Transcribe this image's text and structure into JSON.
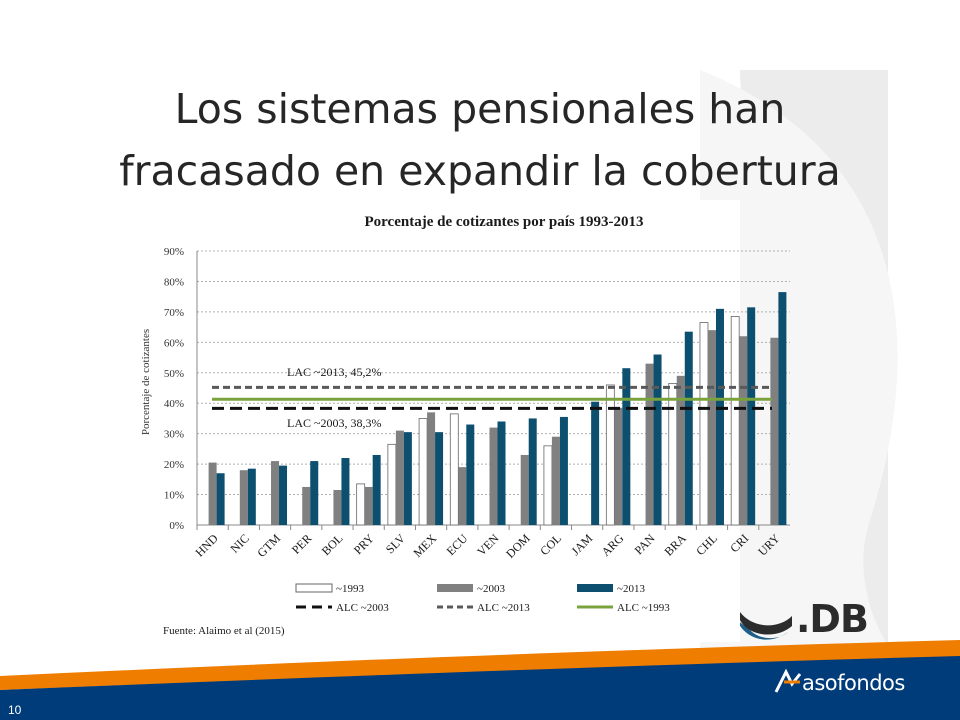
{
  "slide": {
    "title_line1": "Los sistemas pensionales han",
    "title_line2": "fracasado en expandir la cobertura",
    "page_number": "10",
    "source": "Fuente: Alaimo et al (2015)",
    "logo_idb": ".DB",
    "logo_asofondos": "asofondos",
    "colors": {
      "footer_band": "#003b7a",
      "accent_orange": "#ef7d00",
      "background_gray": "#ececec"
    }
  },
  "chart_data": {
    "type": "bar",
    "title": "Porcentaje de cotizantes por país 1993-2013",
    "ylabel": "Porcentaje de cotizantes",
    "ylim": [
      0,
      90
    ],
    "yticks": [
      "0%",
      "10%",
      "20%",
      "30%",
      "40%",
      "50%",
      "60%",
      "70%",
      "80%",
      "90%"
    ],
    "grid": true,
    "categories": [
      "HND",
      "NIC",
      "GTM",
      "PER",
      "BOL",
      "PRY",
      "SLV",
      "MEX",
      "ECU",
      "VEN",
      "DOM",
      "COL",
      "JAM",
      "ARG",
      "PAN",
      "BRA",
      "CHL",
      "CRI",
      "URY"
    ],
    "series": [
      {
        "name": "~1993",
        "color": "#ffffff",
        "values": [
          null,
          null,
          null,
          null,
          null,
          13.5,
          26.5,
          35,
          36.5,
          null,
          null,
          26,
          null,
          46,
          null,
          46.5,
          66.5,
          68.5,
          null
        ]
      },
      {
        "name": "~2003",
        "color": "#808080",
        "values": [
          20.5,
          18,
          21,
          12.5,
          11.5,
          12.5,
          31,
          37,
          19,
          32,
          23,
          29,
          null,
          38.5,
          53,
          49,
          64,
          62,
          61.5
        ]
      },
      {
        "name": "~2013",
        "color": "#0d4f6e",
        "values": [
          17,
          18.5,
          19.5,
          21,
          22,
          23,
          30.5,
          30.5,
          33,
          34,
          35,
          35.5,
          40.5,
          51.5,
          56,
          63.5,
          71,
          71.5,
          76.5
        ]
      }
    ],
    "reference_lines": [
      {
        "name": "ALC ~2003",
        "value": 38.3,
        "color": "#111111",
        "style": "dashed"
      },
      {
        "name": "ALC ~2013",
        "value": 45.2,
        "color": "#595959",
        "style": "dashed"
      },
      {
        "name": "ALC ~1993",
        "value": 41.3,
        "color": "#7aa33d",
        "style": "solid"
      }
    ],
    "annotations": [
      "LAC ~2013, 45,2%",
      "LAC ~2003, 38,3%"
    ],
    "legend_position": "bottom"
  }
}
